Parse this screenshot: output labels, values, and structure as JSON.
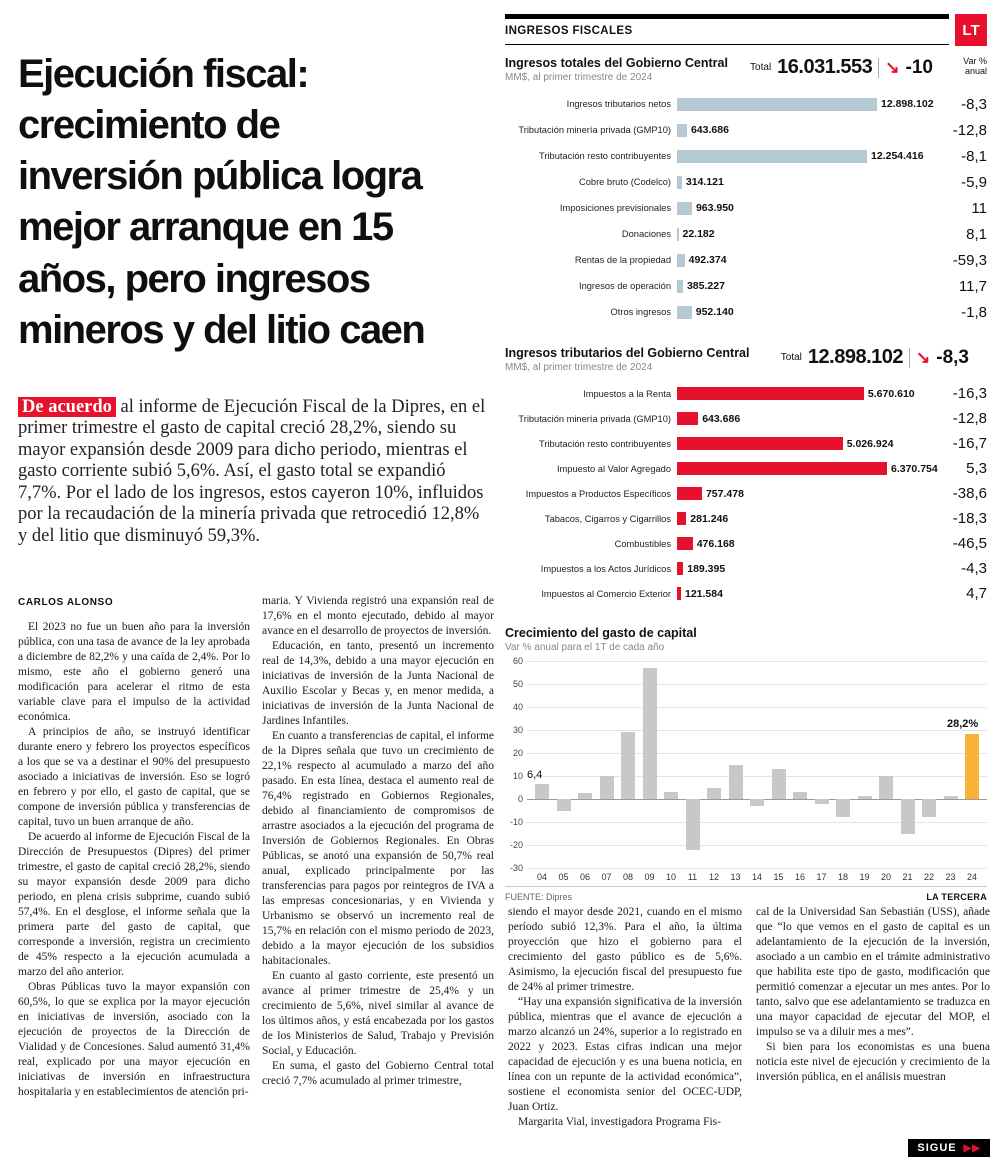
{
  "brand": {
    "logo": "LT",
    "red": "#e8112d"
  },
  "headline": "Ejecución fiscal:\ncrecimiento de\ninversión pública logra\nmejor arranque en 15\naños, pero ingresos\nmineros y del litio caen",
  "lead": {
    "highlight": "De acuerdo",
    "text": " al informe de Ejecución Fiscal de la Dipres, en el primer trimestre el gasto de capital creció 28,2%, siendo su mayor expansión desde 2009 para dicho periodo, mientras el gasto corriente subió 5,6%. Así, el gasto total se expandió 7,7%. Por el lado de los ingresos, estos cayeron 10%, influidos por la recaudación de la minería privada que retrocedió 12,8% y del litio que disminuyó 59,3%."
  },
  "byline": "CARLOS ALONSO",
  "continue_marker": {
    "text": "SIGUE",
    "arrows": "▶▶"
  },
  "infographic": {
    "section_label": "INGRESOS FISCALES",
    "total_label": "Total",
    "arrow": "↘",
    "var_header": "Var %\nanual",
    "source_label": "FUENTE: Dipres",
    "credit": "LA TERCERA",
    "colors": {
      "blue_bar": "#b4c9d4",
      "red_bar": "#e8112d",
      "gray_bar": "#c8c8c8",
      "yellow_bar": "#f7b336"
    }
  },
  "chart_data": [
    {
      "type": "bar",
      "orientation": "horizontal",
      "title": "Ingresos totales del Gobierno Central",
      "subtitle": "MM$, al primer trimestre de 2024",
      "total": "16.031.553",
      "total_var": "-10",
      "categories": [
        "Ingresos tributarios netos",
        "Tributación minería privada (GMP10)",
        "Tributación resto contribuyentes",
        "Cobre bruto (Codelco)",
        "Imposiciones previsionales",
        "Donaciones",
        "Rentas de la propiedad",
        "Ingresos de operación",
        "Otros ingresos"
      ],
      "values": [
        12898102,
        643686,
        12254416,
        314121,
        963950,
        22182,
        492374,
        385227,
        952140
      ],
      "value_labels": [
        "12.898.102",
        "643.686",
        "12.254.416",
        "314.121",
        "963.950",
        "22.182",
        "492.374",
        "385.227",
        "952.140"
      ],
      "var_values": [
        "-8,3",
        "-12,8",
        "-8,1",
        "-5,9",
        "11",
        "8,1",
        "-59,3",
        "11,7",
        "-1,8"
      ]
    },
    {
      "type": "bar",
      "orientation": "horizontal",
      "title": "Ingresos tributarios del Gobierno Central",
      "subtitle": "MM$, al primer trimestre de 2024",
      "total": "12.898.102",
      "total_var": "-8,3",
      "categories": [
        "Impuestos a la Renta",
        "Tributación minería privada (GMP10)",
        "Tributación resto contribuyentes",
        "Impuesto al Valor Agregado",
        "Impuestos a Productos Específicos",
        "Tabacos, Cigarros y Cigarrillos",
        "Combustibles",
        "Impuestos a los Actos Jurídicos",
        "Impuestos al Comercio Exterior"
      ],
      "values": [
        5670610,
        643686,
        5026924,
        6370754,
        757478,
        281246,
        476168,
        189395,
        121584
      ],
      "value_labels": [
        "5.670.610",
        "643.686",
        "5.026.924",
        "6.370.754",
        "757.478",
        "281.246",
        "476.168",
        "189.395",
        "121.584"
      ],
      "var_values": [
        "-16,3",
        "-12,8",
        "-16,7",
        "5,3",
        "-38,6",
        "-18,3",
        "-46,5",
        "-4,3",
        "4,7"
      ]
    },
    {
      "type": "bar",
      "orientation": "vertical",
      "title": "Crecimiento del gasto de capital",
      "subtitle": "Var % anual para el 1T de cada año",
      "categories": [
        "04",
        "05",
        "06",
        "07",
        "08",
        "09",
        "10",
        "11",
        "12",
        "13",
        "14",
        "15",
        "16",
        "17",
        "18",
        "19",
        "20",
        "21",
        "22",
        "23",
        "24"
      ],
      "values": [
        6.4,
        -5,
        2.5,
        10,
        29,
        57,
        3,
        -22,
        5,
        15,
        -3,
        13,
        3,
        -2,
        -8,
        1.5,
        10,
        -15,
        -8,
        1.5,
        28.2
      ],
      "ylim": [
        -30,
        60
      ],
      "yticks": [
        60,
        50,
        40,
        30,
        20,
        10,
        0,
        -10,
        -20,
        -30
      ],
      "highlight_index": 20,
      "annotations": {
        "first": "6,4",
        "last": "28,2%"
      },
      "source": "Dipres"
    }
  ],
  "article": {
    "columns": [
      [
        {
          "indent": true,
          "text": "El 2023 no fue un buen año para la inversión pública, con una tasa de avance de la ley aprobada a diciembre de 82,2% y una caída de 2,4%. Por lo mismo, este año el gobierno generó una modificación para acelerar el ritmo de esta variable clave para el impulso de la actividad económica."
        },
        {
          "indent": true,
          "text": "A principios de año, se instruyó identificar durante enero y febrero los proyectos específicos a los que se va a destinar el 90% del presupuesto asociado a iniciativas de inversión. Eso se logró en febrero y por ello, el gasto de capital, que se compone de inversión pública y transferencias de capital, tuvo un buen arranque de año."
        },
        {
          "indent": true,
          "text": "De acuerdo al informe de Ejecución Fiscal de la Dirección de Presupuestos (Dipres) del primer trimestre, el gasto de capital creció 28,2%, siendo su mayor expansión desde 2009 para dicho periodo, en plena crisis subprime, cuando subió 57,4%. En el desglose, el informe señala que la primera parte del gasto de capital, que corresponde a inversión, registra un crecimiento de 45% respecto a la ejecución acumulada a marzo del año anterior."
        },
        {
          "indent": true,
          "text": "Obras Públicas tuvo la mayor expansión con 60,5%, lo que se explica por la mayor ejecución en iniciativas de inversión, asociado con la ejecución de proyectos de la Dirección de Vialidad y de Concesiones. Salud aumentó 31,4% real, explicado por una mayor ejecución en iniciativas de inversión en infraestructura hospitalaria y en establecimientos de atención pri-"
        }
      ],
      [
        {
          "indent": false,
          "text": "maria. Y Vivienda registró una expansión real de 17,6% en el monto ejecutado, debido al mayor avance en el desarrollo de proyectos de inversión."
        },
        {
          "indent": true,
          "text": "Educación, en tanto, presentó un incremento real de 14,3%, debido a una mayor ejecución en iniciativas de inversión de la Junta Nacional de Auxilio Escolar y Becas y, en menor medida, a iniciativas de inversión de la Junta Nacional de Jardines Infantiles."
        },
        {
          "indent": true,
          "text": "En cuanto a transferencias de capital, el informe de la Dipres señala que tuvo un crecimiento de 22,1% respecto al acumulado a marzo del año pasado. En esta línea, destaca el aumento real de 76,4% registrado en Gobiernos Regionales, debido al financiamiento de compromisos de arrastre asociados a la ejecución del programa de Inversión de Gobiernos Regionales. En Obras Públicas, se anotó una expansión de 50,7% real anual, explicado principalmente por las transferencias para pagos por reintegros de IVA a las empresas concesionarias, y en Vivienda y Urbanismo se observó un incremento real de 15,7% en relación con el mismo periodo de 2023, debido a la mayor ejecución de los subsidios habitacionales."
        },
        {
          "indent": true,
          "text": "En cuanto al gasto corriente, este presentó un avance al primer trimestre de 25,4% y un crecimiento de 5,6%, nivel similar al avance de los últimos años, y está encabezada por los gastos de los Ministerios de Salud, Trabajo y Previsión Social, y Educación."
        },
        {
          "indent": true,
          "text": "En suma, el gasto del Gobierno Central total creció 7,7% acumulado al primer trimestre,"
        }
      ],
      [
        {
          "indent": false,
          "text": "siendo el mayor desde 2021, cuando en el mismo período subió 12,3%. Para el año, la última proyección que hizo el gobierno para el crecimiento del gasto público es de 5,6%. Asimismo, la ejecución fiscal del presupuesto fue de 24% al primer trimestre."
        },
        {
          "indent": true,
          "text": "“Hay una expansión significativa de la inversión pública, mientras que el avance de ejecución a marzo alcanzó un 24%, superior a lo registrado en 2022 y 2023. Estas cifras indican una mejor capacidad de ejecución y es una buena noticia, en línea con un repunte de la actividad económica”, sostiene el economista senior del OCEC-UDP, Juan Ortiz."
        },
        {
          "indent": true,
          "text": "Margarita Vial, investigadora Programa Fis-"
        }
      ],
      [
        {
          "indent": false,
          "text": "cal de la Universidad San Sebastián (USS), añade que “lo que vemos en el gasto de capital es un adelantamiento de la ejecución de la inversión, asociado a un cambio en el trámite administrativo que habilita este tipo de gasto, modificación que permitió comenzar a ejecutar un mes antes. Por lo tanto, salvo que ese adelantamiento se traduzca en una mayor capacidad de ejecutar del MOP, el impulso se va a diluir mes a mes”."
        },
        {
          "indent": true,
          "text": "Si bien para los economistas es una buena noticia este nivel de ejecución y crecimiento de la inversión pública, en el análisis muestran"
        }
      ]
    ]
  }
}
